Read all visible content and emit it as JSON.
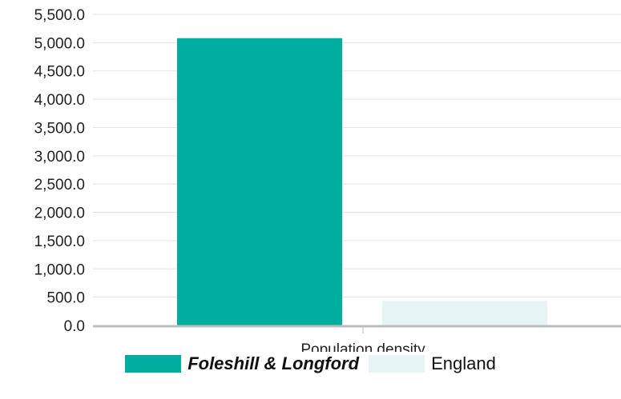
{
  "chart_data": {
    "type": "bar",
    "categories": [
      "Population density"
    ],
    "series": [
      {
        "name": "Foleshill & Longford",
        "values": [
          5080
        ],
        "color": "#00aea0",
        "emphasis": true
      },
      {
        "name": "England",
        "values": [
          434
        ],
        "color": "#e6f4f4",
        "emphasis": false
      }
    ],
    "ylim": [
      0,
      5500
    ],
    "yticks": [
      0,
      500,
      1000,
      1500,
      2000,
      2500,
      3000,
      3500,
      4000,
      4500,
      5000,
      5500
    ],
    "grid": true,
    "legend_position": "bottom",
    "colors": {
      "grid": "#e3e3e3",
      "axis": "#bdbdbd"
    }
  }
}
